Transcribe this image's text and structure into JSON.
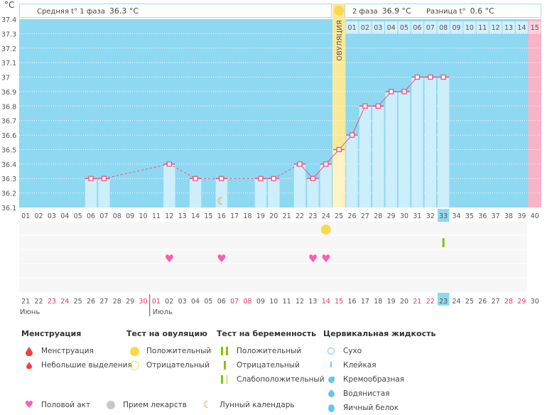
{
  "unit": "°C",
  "header": {
    "phase1_label": "Средняя t° 1 фаза",
    "phase1_value": "36.3 °C",
    "phase2_label": "2 фаза",
    "phase2_value": "36.9 °C",
    "diff_label": "Разница t°",
    "diff_value": "0.6 °C",
    "ovulation_label": "ОВУЛЯЦИЯ",
    "phase2_days": [
      "01",
      "02",
      "03",
      "04",
      "05",
      "06",
      "07",
      "08",
      "09",
      "10",
      "11",
      "12",
      "13",
      "14",
      "15"
    ]
  },
  "colors": {
    "bg": "#8fd8f2",
    "bar": "#cdeefb",
    "line": "#f0507a",
    "ovulation": "#fbe99a",
    "period": "#f9b3c6",
    "heart": "#ff5cb4",
    "sun": "#fdd84a",
    "test": "#8cc000",
    "weekend": "#f0306a"
  },
  "chart_data": {
    "type": "bar",
    "title": "",
    "xlabel": "",
    "ylabel": "°C",
    "ylim": [
      36.1,
      37.4
    ],
    "yticks": [
      "37.4",
      "37.3",
      "37.2",
      "37.1",
      "37",
      "36.9",
      "36.8",
      "36.7",
      "36.6",
      "36.5",
      "36.4",
      "36.3",
      "36.2",
      "36.1"
    ],
    "days": [
      "01",
      "02",
      "03",
      "04",
      "05",
      "06",
      "07",
      "08",
      "09",
      "10",
      "11",
      "12",
      "13",
      "14",
      "15",
      "16",
      "17",
      "18",
      "19",
      "20",
      "21",
      "22",
      "23",
      "24",
      "25",
      "26",
      "27",
      "28",
      "29",
      "30",
      "31",
      "32",
      "33",
      "34",
      "35",
      "36",
      "37",
      "38",
      "39",
      "40"
    ],
    "temps": [
      null,
      null,
      null,
      null,
      null,
      36.3,
      36.3,
      null,
      null,
      null,
      null,
      36.4,
      null,
      36.3,
      null,
      36.3,
      null,
      null,
      36.3,
      36.3,
      null,
      36.4,
      36.3,
      36.4,
      36.5,
      36.6,
      36.8,
      36.8,
      36.9,
      36.9,
      37.0,
      37.0,
      37.0,
      null,
      null,
      null,
      null,
      null,
      null,
      null
    ],
    "ovulation_day": 25,
    "period_day": 40,
    "today_day": 33,
    "moon_day": 16
  },
  "calendar": {
    "dates": [
      "21",
      "22",
      "23",
      "24",
      "25",
      "26",
      "27",
      "28",
      "29",
      "30",
      "01",
      "02",
      "03",
      "04",
      "05",
      "06",
      "07",
      "08",
      "09",
      "10",
      "11",
      "12",
      "13",
      "14",
      "15",
      "16",
      "17",
      "18",
      "19",
      "20",
      "21",
      "22",
      "23",
      "24",
      "25",
      "26",
      "27",
      "28",
      "29",
      "30"
    ],
    "weekend": [
      3,
      4,
      10,
      11,
      17,
      18,
      24,
      25,
      31,
      32,
      38,
      39
    ],
    "months": [
      "Июнь",
      "Июль"
    ]
  },
  "events": {
    "ovulation_test_positive": [
      24
    ],
    "hearts": [
      12,
      16,
      23,
      24
    ],
    "pregnancy_negative": [
      33
    ]
  },
  "legend": {
    "menstruation": {
      "title": "Менструация",
      "items": [
        "Менструация",
        "Небольшие выделения"
      ]
    },
    "ovulation": {
      "title": "Тест на овуляцию",
      "items": [
        "Положительный",
        "Отрицательный"
      ]
    },
    "pregnancy": {
      "title": "Тест на беременность",
      "items": [
        "Положительный",
        "Отрицательный",
        "Слабоположительный"
      ]
    },
    "cervical": {
      "title": "Цервикальная жидкость",
      "items": [
        "Сухо",
        "Клейкая",
        "Кремообразная",
        "Водянистая",
        "Яичный белок"
      ]
    },
    "other": [
      "Половой акт",
      "Прием лекарств",
      "Лунный календарь"
    ]
  }
}
